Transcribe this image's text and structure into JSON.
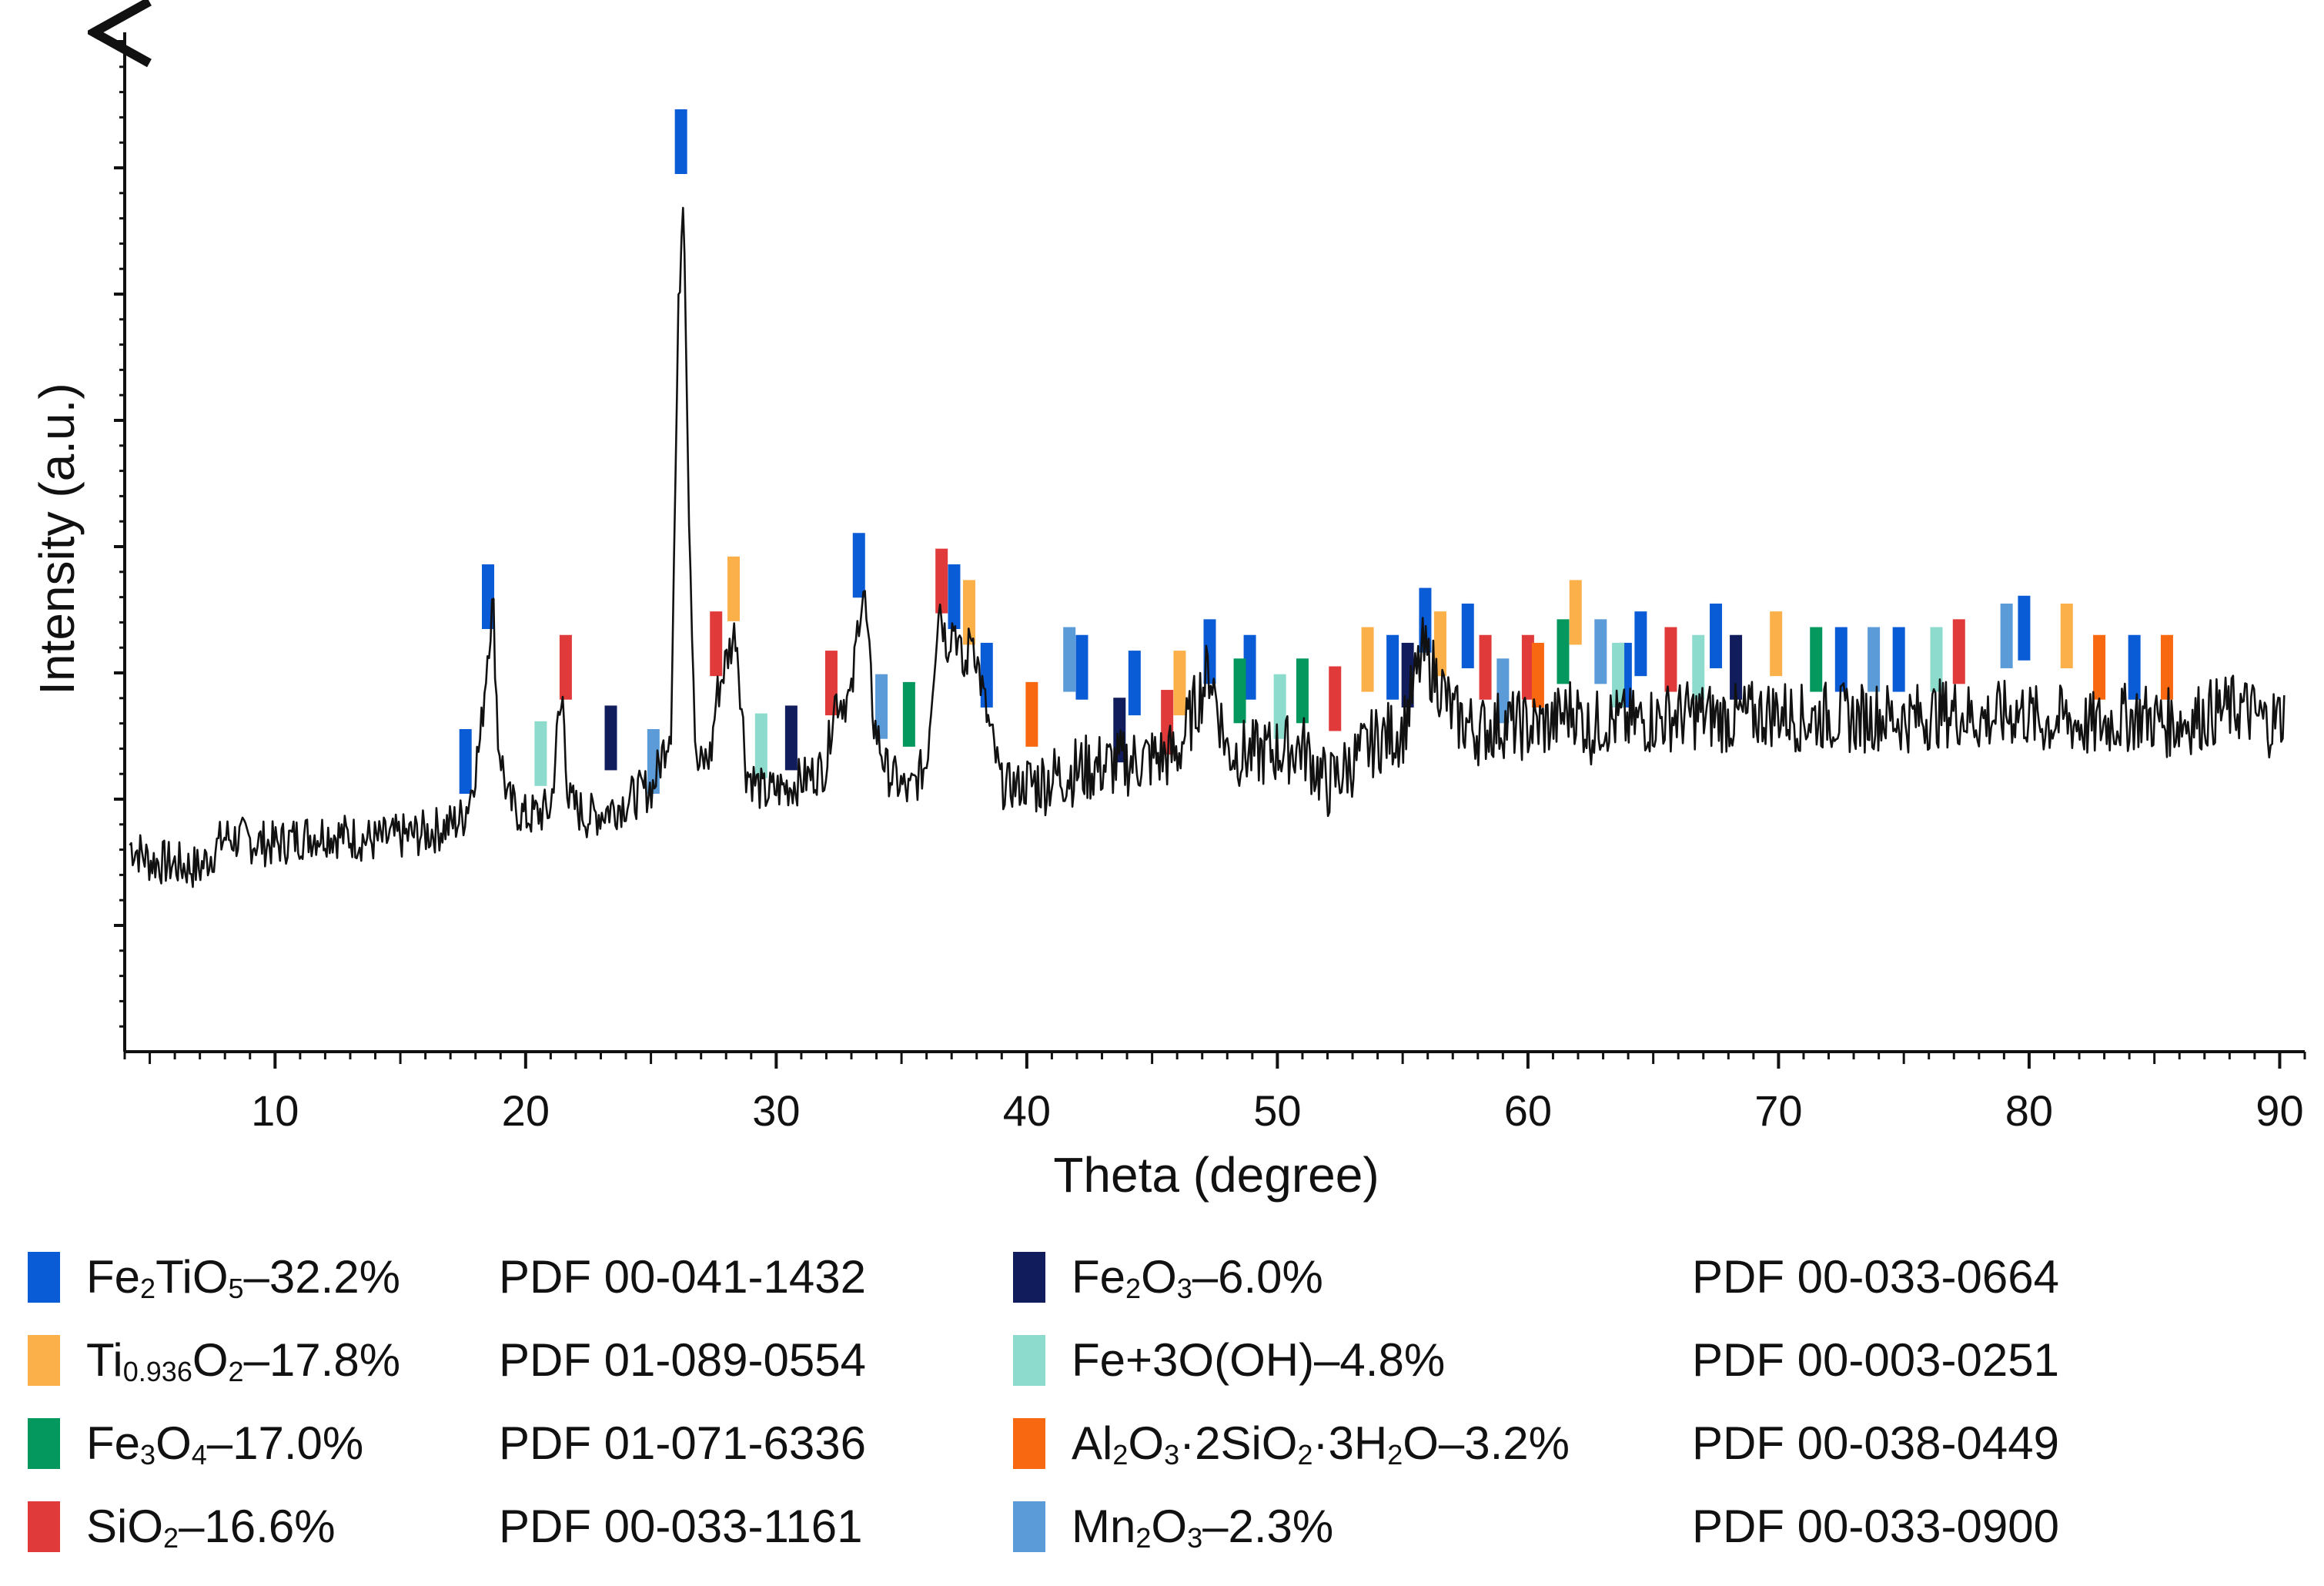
{
  "chart_data": {
    "type": "line",
    "xlabel": "Theta (degree)",
    "ylabel": "Intensity (a.u.)",
    "xlim": [
      4,
      91
    ],
    "ylim": [
      0,
      100
    ],
    "x_ticks": [
      10,
      20,
      30,
      40,
      50,
      60,
      70,
      80,
      90
    ],
    "x_tick_labels": [
      "10",
      "20",
      "30",
      "40",
      "50",
      "60",
      "70",
      "80",
      "90"
    ],
    "y_major_ticks": [
      10,
      20,
      30,
      40,
      50,
      60,
      70,
      80
    ],
    "grid": false,
    "series": [
      {
        "name": "XRD pattern",
        "x": [
          4.2,
          5.0,
          6.0,
          7.0,
          8.0,
          9.0,
          10.0,
          11.0,
          12.0,
          13.0,
          14.0,
          15.0,
          16.0,
          17.0,
          17.5,
          17.8,
          18.2,
          18.5,
          18.7,
          18.9,
          19.3,
          20.0,
          21.0,
          21.3,
          21.5,
          21.7,
          22.5,
          23.3,
          24.0,
          25.1,
          25.8,
          26.1,
          26.3,
          26.5,
          26.8,
          27.4,
          27.6,
          28.0,
          28.4,
          28.8,
          29.5,
          30.5,
          31.2,
          32.0,
          32.3,
          33.0,
          33.3,
          33.5,
          33.9,
          34.4,
          35.3,
          36.0,
          36.5,
          36.8,
          37.1,
          37.5,
          37.8,
          38.4,
          39.0,
          40.0,
          41.0,
          42.0,
          43.0,
          44.0,
          45.0,
          46.0,
          47.3,
          48.0,
          49.0,
          50.0,
          51.0,
          52.0,
          53.0,
          54.0,
          55.0,
          55.8,
          56.5,
          57.0,
          58.0,
          59.0,
          60.0,
          61.0,
          61.8,
          62.5,
          63.0,
          64.0,
          65.0,
          66.0,
          67.0,
          68.0,
          69.0,
          70.0,
          71.0,
          72.0,
          73.0,
          74.0,
          75.0,
          76.0,
          77.0,
          78.0,
          79.0,
          79.7,
          80.5,
          81.5,
          82.5,
          83.5,
          84.5,
          85.5,
          86.5,
          87.5,
          88.5,
          89.5,
          90.2
        ],
        "y": [
          14.5,
          12.5,
          12.0,
          11.5,
          15.5,
          15.0,
          14.5,
          15.5,
          16.0,
          15.5,
          15.0,
          15.5,
          16.0,
          17.0,
          18.0,
          21.0,
          28.0,
          40.0,
          45.5,
          28.0,
          20.0,
          18.0,
          19.0,
          30.0,
          33.0,
          20.0,
          18.0,
          19.0,
          20.0,
          22.0,
          30.0,
          82.0,
          100.0,
          60.0,
          24.0,
          26.0,
          33.0,
          38.0,
          42.0,
          24.0,
          21.0,
          22.0,
          23.0,
          24.5,
          33.0,
          33.0,
          44.0,
          47.0,
          30.0,
          24.0,
          21.0,
          25.0,
          46.0,
          40.0,
          43.0,
          36.0,
          42.0,
          31.0,
          22.0,
          22.0,
          23.0,
          24.0,
          24.5,
          25.0,
          25.5,
          26.0,
          37.0,
          26.5,
          26.0,
          26.5,
          27.0,
          22.0,
          25.0,
          28.0,
          29.0,
          39.0,
          35.0,
          31.0,
          29.0,
          30.0,
          29.5,
          30.0,
          32.0,
          29.0,
          30.5,
          30.0,
          30.5,
          31.0,
          31.0,
          30.5,
          31.0,
          31.5,
          30.5,
          31.0,
          30.5,
          31.0,
          30.5,
          31.0,
          31.5,
          30.5,
          31.0,
          31.5,
          30.0,
          30.5,
          29.5,
          30.5,
          31.0,
          30.0,
          30.5,
          31.5,
          32.0,
          30.0,
          31.0
        ]
      }
    ],
    "phases": [
      {
        "name": "Fe2TiO5",
        "color": "#0a5bd6",
        "peaks": [
          17.6,
          18.5,
          26.2,
          33.3,
          37.1,
          38.4,
          42.2,
          44.3,
          47.3,
          48.9,
          54.6,
          55.9,
          57.6,
          63.9,
          64.5,
          67.5,
          72.5,
          74.8,
          79.8,
          84.2
        ],
        "peak_heights": [
          21,
          42,
          100,
          46,
          42,
          32,
          33,
          31,
          35,
          33,
          33,
          39,
          37,
          32,
          36,
          37,
          34,
          34,
          38,
          33
        ]
      },
      {
        "name": "Ti0.936O2",
        "color": "#fbb04a",
        "peaks": [
          28.3,
          37.7,
          46.1,
          53.6,
          56.5,
          61.9,
          69.9,
          81.5
        ],
        "peak_heights": [
          43,
          40,
          31,
          34,
          36,
          40,
          36,
          37
        ]
      },
      {
        "name": "Fe3O4",
        "color": "#04985e",
        "peaks": [
          35.3,
          48.5,
          51.0,
          61.4,
          71.5
        ],
        "peak_heights": [
          27,
          30,
          30,
          35,
          34
        ]
      },
      {
        "name": "SiO2",
        "color": "#e03a3a",
        "peaks": [
          21.6,
          27.6,
          32.2,
          36.6,
          45.6,
          52.3,
          58.3,
          60.0,
          65.7,
          77.2
        ],
        "peak_heights": [
          33,
          36,
          31,
          44,
          26,
          29,
          33,
          33,
          34,
          35
        ]
      },
      {
        "name": "Fe2O3",
        "color": "#101c5c",
        "peaks": [
          23.4,
          30.6,
          43.7,
          55.2,
          68.3
        ],
        "peak_heights": [
          24,
          24,
          25,
          32,
          33
        ]
      },
      {
        "name": "Fe+3O(OH)",
        "color": "#8ddbcd",
        "peaks": [
          20.6,
          29.4,
          50.1,
          63.6,
          66.8,
          76.3
        ],
        "peak_heights": [
          22,
          23,
          28,
          32,
          33,
          34
        ]
      },
      {
        "name": "Al2O3·2SiO2·3H2O",
        "color": "#f76810",
        "peaks": [
          40.2,
          60.4,
          82.8,
          85.5
        ],
        "peak_heights": [
          27,
          32,
          33,
          33
        ]
      },
      {
        "name": "Mn2O3",
        "color": "#5a9bd8",
        "peaks": [
          25.1,
          34.2,
          41.7,
          59.0,
          62.9,
          73.8,
          79.1
        ],
        "peak_heights": [
          21,
          28,
          34,
          30,
          35,
          34,
          37
        ]
      }
    ]
  },
  "legend": {
    "left": [
      {
        "formula": "Fe<sub>2</sub>TiO<sub>5</sub>–32.2%",
        "pdf": "PDF 00-041-1432",
        "color": "#0a5bd6"
      },
      {
        "formula": "Ti<sub>0.936</sub>O<sub>2</sub>–17.8%",
        "pdf": "PDF 01-089-0554",
        "color": "#fbb04a"
      },
      {
        "formula": "Fe<sub>3</sub>O<sub>4</sub>–17.0%",
        "pdf": "PDF 01-071-6336",
        "color": "#04985e"
      },
      {
        "formula": "SiO<sub>2</sub>–16.6%",
        "pdf": "PDF 00-033-1161",
        "color": "#e03a3a"
      }
    ],
    "right": [
      {
        "formula": "Fe<sub>2</sub>O<sub>3</sub>–6.0%",
        "pdf": "PDF 00-033-0664",
        "color": "#101c5c"
      },
      {
        "formula": "Fe+3O(OH)–4.8%",
        "pdf": "PDF 00-003-0251",
        "color": "#8ddbcd"
      },
      {
        "formula": "Al<sub>2</sub>O<sub>3</sub>·2SiO<sub>2</sub>·3H<sub>2</sub>O–3.2%",
        "pdf": "PDF 00-038-0449",
        "color": "#f76810"
      },
      {
        "formula": "Mn<sub>2</sub>O<sub>3</sub>–2.3%",
        "pdf": "PDF 00-033-0900",
        "color": "#5a9bd8"
      }
    ]
  }
}
